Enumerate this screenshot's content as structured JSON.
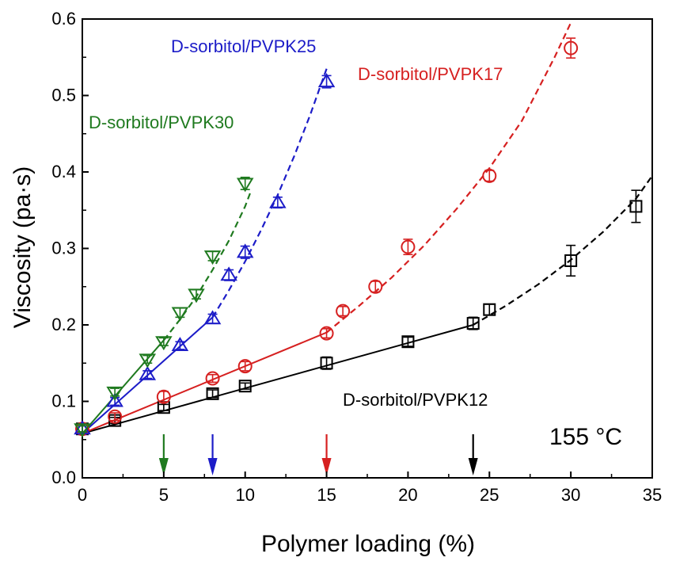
{
  "chart_data": {
    "type": "scatter",
    "xlabel": "Polymer loading (%)",
    "ylabel": "Viscosity (pa·s)",
    "xlim": [
      0,
      35
    ],
    "ylim": [
      0,
      0.6
    ],
    "xticks": [
      0,
      5,
      10,
      15,
      20,
      25,
      30,
      35
    ],
    "yticks": [
      0.0,
      0.1,
      0.2,
      0.3,
      0.4,
      0.5,
      0.6
    ],
    "xtick_labels": [
      "0",
      "5",
      "10",
      "15",
      "20",
      "25",
      "30",
      "35"
    ],
    "ytick_labels": [
      "0.0",
      "0.1",
      "0.2",
      "0.3",
      "0.4",
      "0.5",
      "0.6"
    ],
    "grid": false,
    "temperature_label": "155 °C",
    "series": [
      {
        "name": "D-sorbitol/PVPK12",
        "color": "#000000",
        "marker": "square",
        "x": [
          0,
          2,
          5,
          8,
          10,
          15,
          20,
          24,
          25,
          30,
          34
        ],
        "y": [
          0.064,
          0.075,
          0.092,
          0.11,
          0.12,
          0.15,
          0.178,
          0.202,
          0.22,
          0.284,
          0.355
        ],
        "err": [
          0.004,
          0.004,
          0.004,
          0.005,
          0.004,
          0.008,
          0.006,
          0.008,
          0.007,
          0.02,
          0.021
        ],
        "linear_fit": {
          "x": [
            0,
            24
          ],
          "y": [
            0.058,
            0.2
          ]
        },
        "curve_fit": {
          "x": [
            24,
            26,
            28,
            30,
            32,
            34,
            35
          ],
          "y": [
            0.2,
            0.225,
            0.253,
            0.285,
            0.322,
            0.365,
            0.395
          ]
        },
        "threshold_x": 24
      },
      {
        "name": "D-sorbitol/PVPK17",
        "color": "#d62020",
        "marker": "circle",
        "x": [
          0,
          2,
          5,
          8,
          10,
          15,
          16,
          18,
          20,
          25,
          30
        ],
        "y": [
          0.064,
          0.08,
          0.106,
          0.13,
          0.146,
          0.189,
          0.218,
          0.25,
          0.302,
          0.395,
          0.562
        ],
        "err": [
          0.004,
          0.005,
          0.007,
          0.005,
          0.006,
          0.006,
          0.006,
          0.007,
          0.01,
          0.007,
          0.013
        ],
        "linear_fit": {
          "x": [
            0,
            15
          ],
          "y": [
            0.058,
            0.19
          ]
        },
        "curve_fit": {
          "x": [
            15,
            17,
            19,
            21,
            23,
            25,
            27,
            29,
            30
          ],
          "y": [
            0.19,
            0.225,
            0.262,
            0.304,
            0.352,
            0.405,
            0.467,
            0.55,
            0.595
          ]
        },
        "threshold_x": 15
      },
      {
        "name": "D-sorbitol/PVPK25",
        "color": "#1c1cc8",
        "marker": "triangle-up",
        "x": [
          0,
          2,
          4,
          6,
          8,
          9,
          10,
          12,
          15
        ],
        "y": [
          0.064,
          0.1,
          0.135,
          0.173,
          0.208,
          0.265,
          0.295,
          0.36,
          0.518
        ],
        "err": [
          0.004,
          0.005,
          0.005,
          0.005,
          0.006,
          0.007,
          0.008,
          0.007,
          0.008
        ],
        "linear_fit": {
          "x": [
            0,
            8
          ],
          "y": [
            0.058,
            0.21
          ]
        },
        "curve_fit": {
          "x": [
            8,
            9,
            10,
            11,
            12,
            13,
            14,
            15
          ],
          "y": [
            0.21,
            0.245,
            0.283,
            0.325,
            0.37,
            0.42,
            0.475,
            0.535
          ]
        },
        "threshold_x": 8
      },
      {
        "name": "D-sorbitol/PVPK30",
        "color": "#1f7a1f",
        "marker": "triangle-down",
        "x": [
          0,
          2,
          4,
          5,
          6,
          7,
          8,
          10
        ],
        "y": [
          0.064,
          0.112,
          0.155,
          0.178,
          0.216,
          0.24,
          0.29,
          0.385
        ],
        "err": [
          0.004,
          0.005,
          0.005,
          0.005,
          0.006,
          0.006,
          0.006,
          0.008
        ],
        "linear_fit": {
          "x": [
            0,
            5
          ],
          "y": [
            0.058,
            0.18
          ]
        },
        "curve_fit": {
          "x": [
            5,
            6,
            7,
            8,
            9,
            10,
            10.3
          ],
          "y": [
            0.18,
            0.207,
            0.237,
            0.272,
            0.31,
            0.355,
            0.372
          ]
        },
        "threshold_x": 5
      }
    ]
  }
}
